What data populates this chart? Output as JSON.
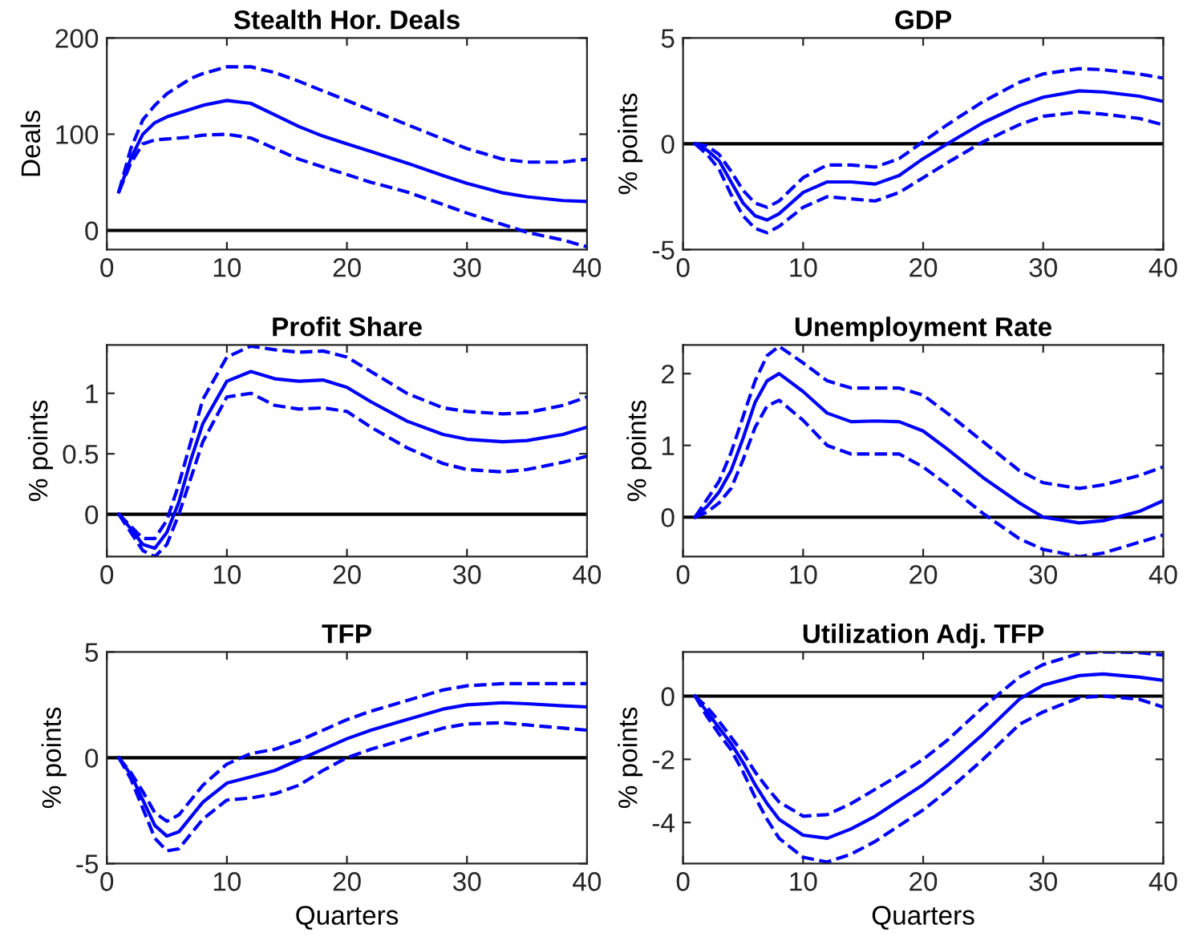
{
  "chart_data": [
    {
      "type": "line",
      "title": "Stealth Hor. Deals",
      "ylabel": "Deals",
      "x": [
        1,
        2,
        3,
        4,
        5,
        6,
        7,
        8,
        10,
        12,
        14,
        16,
        18,
        20,
        22,
        25,
        28,
        30,
        33,
        35,
        38,
        40
      ],
      "xlim": [
        0,
        40
      ],
      "xticks": [
        0,
        10,
        20,
        30,
        40
      ],
      "ylim": [
        -20,
        200
      ],
      "yticks": [
        0,
        100,
        200
      ],
      "ref_lines": [
        {
          "axis": "y",
          "value": 0,
          "color": "#000000"
        }
      ],
      "series": [
        {
          "color": "#0000ff",
          "line_style": "solid",
          "values": [
            40,
            75,
            100,
            112,
            118,
            122,
            126,
            130,
            135,
            132,
            120,
            108,
            98,
            90,
            82,
            70,
            57,
            49,
            39,
            35,
            31,
            30
          ]
        },
        {
          "color": "#0000ff",
          "line_style": "dashed",
          "values": [
            40,
            85,
            115,
            130,
            142,
            150,
            158,
            163,
            170,
            170,
            164,
            155,
            145,
            135,
            125,
            110,
            95,
            85,
            74,
            71,
            71,
            74
          ]
        },
        {
          "color": "#0000ff",
          "line_style": "dashed",
          "values": [
            40,
            70,
            90,
            94,
            95,
            96,
            97,
            99,
            100,
            96,
            85,
            74,
            66,
            58,
            50,
            40,
            27,
            18,
            6,
            -2,
            -10,
            -17
          ]
        }
      ]
    },
    {
      "type": "line",
      "title": "GDP",
      "ylabel": "% points",
      "x": [
        1,
        2,
        3,
        4,
        5,
        6,
        7,
        8,
        10,
        12,
        14,
        16,
        18,
        20,
        22,
        25,
        28,
        30,
        33,
        35,
        38,
        40
      ],
      "xlim": [
        0,
        40
      ],
      "xticks": [
        0,
        10,
        20,
        30,
        40
      ],
      "ylim": [
        -5,
        5
      ],
      "yticks": [
        -5,
        0,
        5
      ],
      "ref_lines": [
        {
          "axis": "y",
          "value": 0,
          "color": "#000000"
        }
      ],
      "series": [
        {
          "color": "#0000ff",
          "line_style": "solid",
          "values": [
            0,
            -0.3,
            -0.8,
            -1.8,
            -2.8,
            -3.4,
            -3.6,
            -3.3,
            -2.3,
            -1.8,
            -1.8,
            -1.9,
            -1.5,
            -0.7,
            0,
            1.0,
            1.8,
            2.2,
            2.5,
            2.45,
            2.25,
            2.0
          ]
        },
        {
          "color": "#0000ff",
          "line_style": "dashed",
          "values": [
            0,
            -0.1,
            -0.5,
            -1.3,
            -2.2,
            -2.8,
            -3.0,
            -2.7,
            -1.6,
            -1.0,
            -1.0,
            -1.1,
            -0.7,
            0.1,
            0.9,
            2.0,
            2.9,
            3.3,
            3.55,
            3.5,
            3.3,
            3.1
          ]
        },
        {
          "color": "#0000ff",
          "line_style": "dashed",
          "values": [
            0,
            -0.5,
            -1.2,
            -2.4,
            -3.4,
            -4.0,
            -4.2,
            -3.9,
            -3.0,
            -2.5,
            -2.6,
            -2.7,
            -2.3,
            -1.6,
            -0.9,
            0.1,
            0.9,
            1.3,
            1.5,
            1.4,
            1.2,
            0.9
          ]
        }
      ]
    },
    {
      "type": "line",
      "title": "Profit Share",
      "ylabel": "% points",
      "x": [
        1,
        2,
        3,
        4,
        5,
        6,
        7,
        8,
        10,
        12,
        14,
        16,
        18,
        20,
        22,
        25,
        28,
        30,
        33,
        35,
        38,
        40
      ],
      "xlim": [
        0,
        40
      ],
      "xticks": [
        0,
        10,
        20,
        30,
        40
      ],
      "ylim": [
        -0.35,
        1.4
      ],
      "yticks": [
        0,
        0.5,
        1
      ],
      "ref_lines": [
        {
          "axis": "y",
          "value": 0,
          "color": "#000000"
        }
      ],
      "series": [
        {
          "color": "#0000ff",
          "line_style": "solid",
          "values": [
            0,
            -0.12,
            -0.25,
            -0.28,
            -0.15,
            0.1,
            0.45,
            0.75,
            1.1,
            1.18,
            1.12,
            1.1,
            1.11,
            1.05,
            0.93,
            0.77,
            0.66,
            0.62,
            0.6,
            0.61,
            0.66,
            0.72
          ]
        },
        {
          "color": "#0000ff",
          "line_style": "dashed",
          "values": [
            0,
            -0.1,
            -0.2,
            -0.2,
            -0.05,
            0.25,
            0.6,
            0.95,
            1.3,
            1.39,
            1.36,
            1.34,
            1.35,
            1.3,
            1.18,
            1.0,
            0.88,
            0.85,
            0.83,
            0.84,
            0.9,
            0.97
          ]
        },
        {
          "color": "#0000ff",
          "line_style": "dashed",
          "values": [
            0,
            -0.15,
            -0.3,
            -0.35,
            -0.25,
            0.0,
            0.3,
            0.6,
            0.97,
            1.0,
            0.9,
            0.87,
            0.88,
            0.85,
            0.72,
            0.55,
            0.42,
            0.37,
            0.35,
            0.37,
            0.43,
            0.48
          ]
        }
      ]
    },
    {
      "type": "line",
      "title": "Unemployment Rate",
      "ylabel": "% points",
      "x": [
        1,
        2,
        3,
        4,
        5,
        6,
        7,
        8,
        10,
        12,
        14,
        16,
        18,
        20,
        22,
        25,
        28,
        30,
        33,
        35,
        38,
        40
      ],
      "xlim": [
        0,
        40
      ],
      "xticks": [
        0,
        10,
        20,
        30,
        40
      ],
      "ylim": [
        -0.55,
        2.4
      ],
      "yticks": [
        0,
        1,
        2
      ],
      "ref_lines": [
        {
          "axis": "y",
          "value": 0,
          "color": "#000000"
        }
      ],
      "series": [
        {
          "color": "#0000ff",
          "line_style": "solid",
          "values": [
            0,
            0.15,
            0.35,
            0.65,
            1.1,
            1.6,
            1.9,
            2.0,
            1.75,
            1.45,
            1.33,
            1.34,
            1.33,
            1.2,
            0.95,
            0.55,
            0.2,
            0.0,
            -0.08,
            -0.05,
            0.08,
            0.23
          ]
        },
        {
          "color": "#0000ff",
          "line_style": "dashed",
          "values": [
            0,
            0.25,
            0.5,
            0.9,
            1.4,
            1.9,
            2.25,
            2.38,
            2.15,
            1.9,
            1.8,
            1.8,
            1.8,
            1.7,
            1.45,
            1.05,
            0.65,
            0.48,
            0.4,
            0.45,
            0.58,
            0.7
          ]
        },
        {
          "color": "#0000ff",
          "line_style": "dashed",
          "values": [
            0,
            0.07,
            0.2,
            0.4,
            0.8,
            1.25,
            1.55,
            1.63,
            1.35,
            1.0,
            0.88,
            0.88,
            0.88,
            0.7,
            0.45,
            0.05,
            -0.3,
            -0.45,
            -0.55,
            -0.5,
            -0.35,
            -0.25
          ]
        }
      ]
    },
    {
      "type": "line",
      "title": "TFP",
      "ylabel": "% points",
      "xlabel": "Quarters",
      "x": [
        1,
        2,
        3,
        4,
        5,
        6,
        7,
        8,
        10,
        12,
        14,
        16,
        18,
        20,
        22,
        25,
        28,
        30,
        33,
        35,
        38,
        40
      ],
      "xlim": [
        0,
        40
      ],
      "xticks": [
        0,
        10,
        20,
        30,
        40
      ],
      "ylim": [
        -5,
        5
      ],
      "yticks": [
        -5,
        0,
        5
      ],
      "ref_lines": [
        {
          "axis": "y",
          "value": 0,
          "color": "#000000"
        }
      ],
      "series": [
        {
          "color": "#0000ff",
          "line_style": "solid",
          "values": [
            0,
            -0.8,
            -2.0,
            -3.2,
            -3.7,
            -3.5,
            -2.8,
            -2.1,
            -1.2,
            -0.9,
            -0.6,
            -0.1,
            0.4,
            0.9,
            1.3,
            1.8,
            2.3,
            2.5,
            2.6,
            2.55,
            2.45,
            2.4
          ]
        },
        {
          "color": "#0000ff",
          "line_style": "dashed",
          "values": [
            0,
            -0.7,
            -1.6,
            -2.6,
            -3.0,
            -2.7,
            -2.0,
            -1.3,
            -0.3,
            0.2,
            0.4,
            0.8,
            1.3,
            1.8,
            2.2,
            2.7,
            3.2,
            3.4,
            3.5,
            3.5,
            3.5,
            3.5
          ]
        },
        {
          "color": "#0000ff",
          "line_style": "dashed",
          "values": [
            0,
            -1.0,
            -2.4,
            -3.8,
            -4.4,
            -4.3,
            -3.6,
            -2.9,
            -2.0,
            -1.9,
            -1.7,
            -1.3,
            -0.6,
            0,
            0.4,
            0.9,
            1.4,
            1.6,
            1.65,
            1.55,
            1.4,
            1.3
          ]
        }
      ]
    },
    {
      "type": "line",
      "title": "Utilization Adj. TFP",
      "ylabel": "% points",
      "xlabel": "Quarters",
      "x": [
        1,
        2,
        3,
        4,
        5,
        6,
        7,
        8,
        10,
        12,
        14,
        16,
        18,
        20,
        22,
        25,
        28,
        30,
        33,
        35,
        38,
        40
      ],
      "xlim": [
        0,
        40
      ],
      "xticks": [
        0,
        10,
        20,
        30,
        40
      ],
      "ylim": [
        -5.3,
        1.4
      ],
      "yticks": [
        -4,
        -2,
        0
      ],
      "ref_lines": [
        {
          "axis": "y",
          "value": 0,
          "color": "#000000"
        }
      ],
      "series": [
        {
          "color": "#0000ff",
          "line_style": "solid",
          "values": [
            0,
            -0.5,
            -1.0,
            -1.5,
            -2.1,
            -2.8,
            -3.4,
            -3.9,
            -4.4,
            -4.5,
            -4.2,
            -3.8,
            -3.3,
            -2.8,
            -2.2,
            -1.2,
            -0.1,
            0.35,
            0.65,
            0.7,
            0.6,
            0.5
          ]
        },
        {
          "color": "#0000ff",
          "line_style": "dashed",
          "values": [
            0,
            -0.35,
            -0.8,
            -1.3,
            -1.8,
            -2.4,
            -2.9,
            -3.35,
            -3.8,
            -3.75,
            -3.4,
            -2.95,
            -2.5,
            -2.0,
            -1.4,
            -0.35,
            0.6,
            1.0,
            1.35,
            1.4,
            1.38,
            1.3
          ]
        },
        {
          "color": "#0000ff",
          "line_style": "dashed",
          "values": [
            0,
            -0.65,
            -1.2,
            -1.7,
            -2.4,
            -3.2,
            -3.9,
            -4.5,
            -5.1,
            -5.25,
            -5.0,
            -4.6,
            -4.1,
            -3.6,
            -3.0,
            -2.0,
            -0.9,
            -0.5,
            -0.05,
            0.0,
            -0.1,
            -0.35
          ]
        }
      ]
    }
  ]
}
